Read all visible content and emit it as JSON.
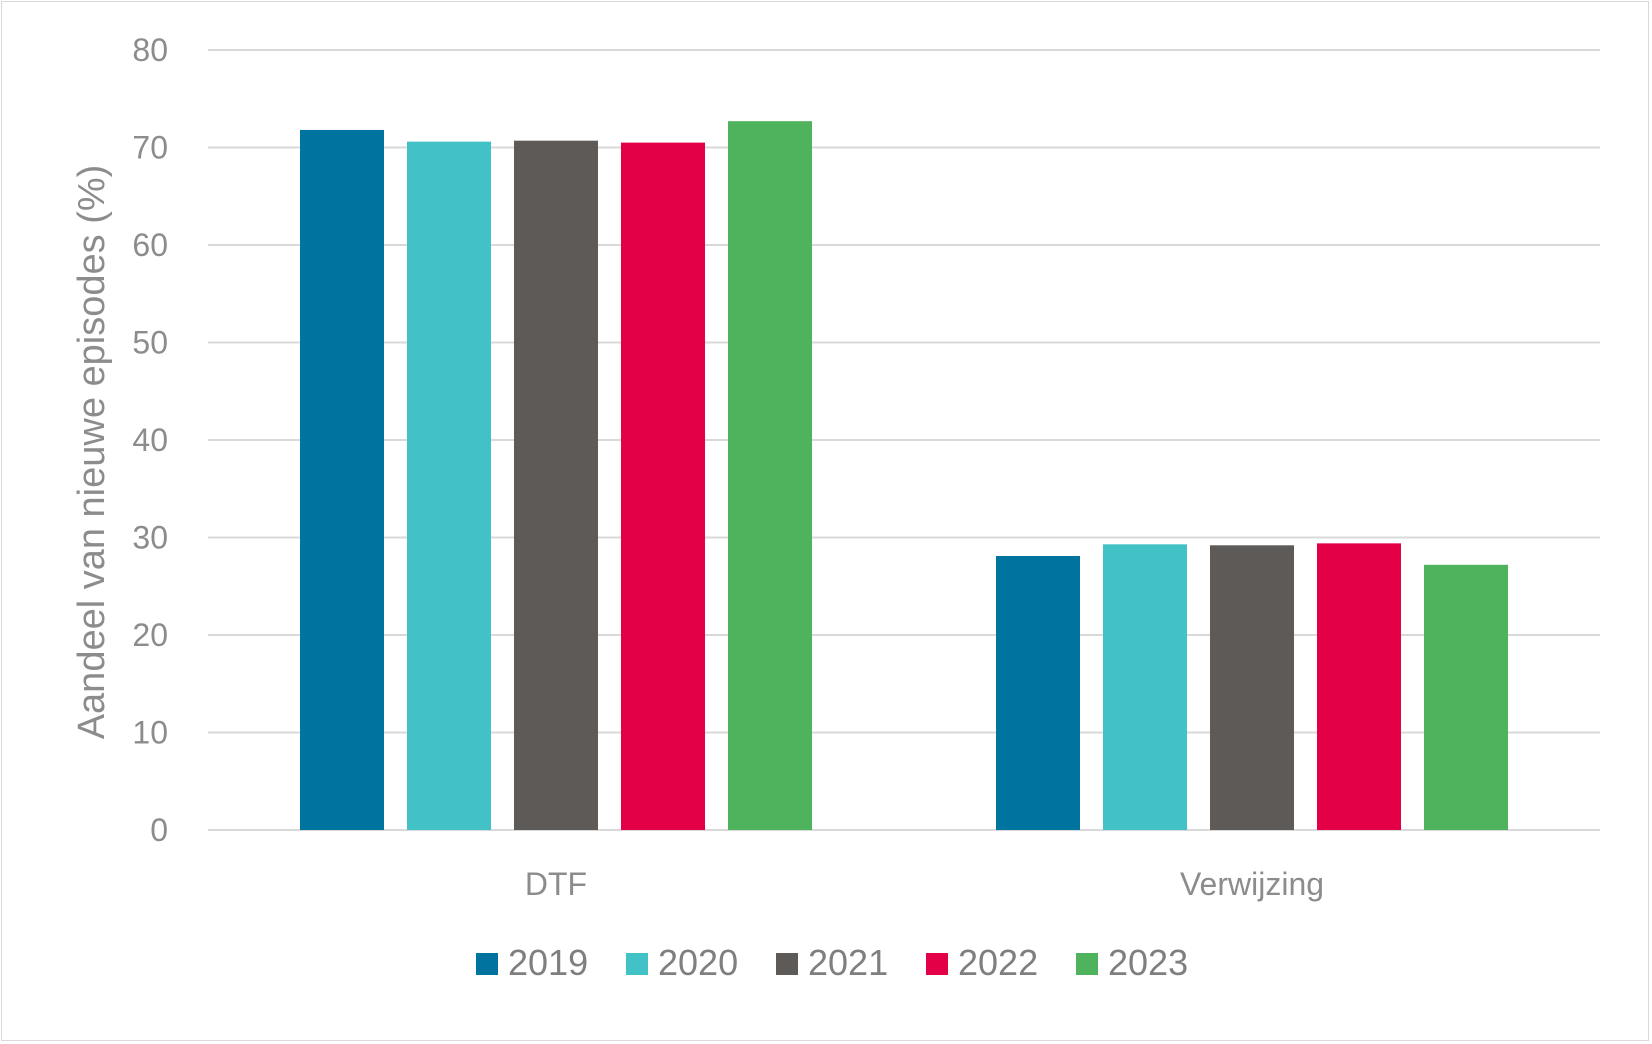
{
  "chart_data": {
    "type": "bar",
    "title": "",
    "xlabel": "",
    "ylabel": "Aandeel van nieuwe episodes (%)",
    "ylim": [
      0,
      80
    ],
    "yticks": [
      0,
      10,
      20,
      30,
      40,
      50,
      60,
      70,
      80
    ],
    "grid": true,
    "legend_position": "bottom",
    "categories": [
      "DTF",
      "Verwijzing"
    ],
    "series": [
      {
        "name": "2019",
        "color": "#00739F",
        "values": [
          71.8,
          28.1
        ]
      },
      {
        "name": "2020",
        "color": "#42C1C6",
        "values": [
          70.6,
          29.3
        ]
      },
      {
        "name": "2021",
        "color": "#5E5A57",
        "values": [
          70.7,
          29.2
        ]
      },
      {
        "name": "2022",
        "color": "#E40046",
        "values": [
          70.5,
          29.4
        ]
      },
      {
        "name": "2023",
        "color": "#4FB25C",
        "values": [
          72.7,
          27.2
        ]
      }
    ]
  }
}
